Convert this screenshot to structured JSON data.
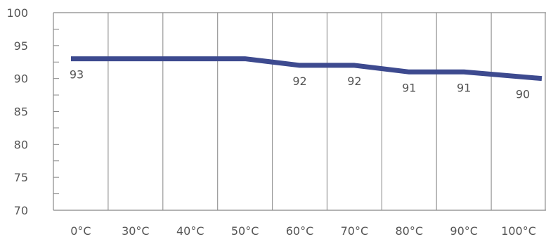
{
  "chart_data": {
    "type": "line",
    "title": "",
    "xlabel": "",
    "ylabel": "",
    "categories": [
      "0°C",
      "30°C",
      "40°C",
      "50°C",
      "60°C",
      "70°C",
      "80°C",
      "90°C",
      "100°C"
    ],
    "series": [
      {
        "values": [
          93,
          93,
          93,
          93,
          92,
          92,
          91,
          91,
          90
        ],
        "color": "#3d4a8f"
      }
    ],
    "data_labels": [
      "93",
      "",
      "",
      "",
      "92",
      "92",
      "91",
      "91",
      "90"
    ],
    "ylim": [
      70,
      100
    ],
    "yticks": [
      "70",
      "75",
      "80",
      "85",
      "90",
      "95",
      "100"
    ],
    "grid": "vertical",
    "legend": "none"
  }
}
